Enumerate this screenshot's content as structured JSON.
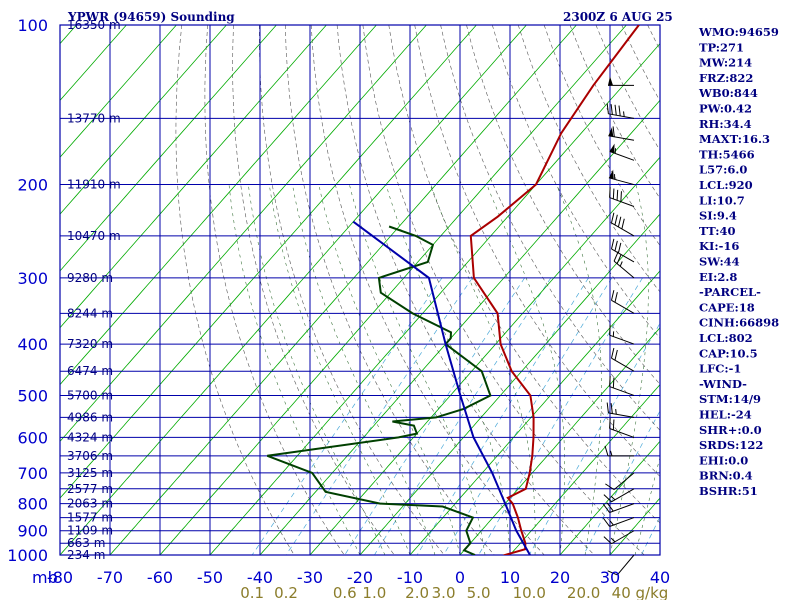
{
  "header": {
    "title": "YPWR (94659) Sounding",
    "time": "2300Z  6 AUG 25"
  },
  "indices": [
    "WMO:94659",
    "TP:271",
    "MW:214",
    "FRZ:822",
    "WB0:844",
    "PW:0.42",
    "RH:34.4",
    "MAXT:16.3",
    "TH:5466",
    "L57:6.0",
    "LCL:920",
    "LI:10.7",
    "SI:9.4",
    "TT:40",
    "KI:-16",
    "SW:44",
    "EI:2.8",
    "-PARCEL-",
    "CAPE:18",
    "CINH:66898",
    "LCL:802",
    "CAP:10.5",
    "LFC:-1",
    "-WIND-",
    "STM:14/9",
    "HEL:-24",
    "SHR+:0.0",
    "SRDS:122",
    "EHI:0.0",
    "BRN:0.4",
    "BSHR:51"
  ],
  "chart_data": {
    "type": "line",
    "subtype": "skew-T log-P sounding",
    "pressure_unit_label": "mb",
    "pressure_ticks": [
      100,
      200,
      300,
      400,
      500,
      600,
      700,
      800,
      900,
      1000
    ],
    "pressure_range": [
      100,
      1000
    ],
    "pressure_axis_scale": "log",
    "temperature_ticks": [
      -80,
      -70,
      -60,
      -50,
      -40,
      -30,
      -20,
      -10,
      0,
      10,
      20,
      30,
      40
    ],
    "temperature_tick_labels": [
      "-80",
      "-70",
      "-60",
      "-50",
      "-40",
      "-30",
      "-20",
      "-10",
      "0",
      "10",
      "20",
      "30",
      "40"
    ],
    "mixing_ratio_labels": [
      "0.1",
      "0.2",
      "0.6",
      "1.0",
      "2.0",
      "3.0",
      "5.0",
      "10.0",
      "20.0",
      "40 g/kg"
    ],
    "height_labels": [
      {
        "p": 100,
        "label": "16350 m"
      },
      {
        "p": 150,
        "label": "13770 m"
      },
      {
        "p": 200,
        "label": "11910 m"
      },
      {
        "p": 250,
        "label": "10470 m"
      },
      {
        "p": 300,
        "label": "9280 m"
      },
      {
        "p": 350,
        "label": "8244 m"
      },
      {
        "p": 400,
        "label": "7320 m"
      },
      {
        "p": 450,
        "label": "6474 m"
      },
      {
        "p": 500,
        "label": "5700 m"
      },
      {
        "p": 550,
        "label": "4986 m"
      },
      {
        "p": 600,
        "label": "4324 m"
      },
      {
        "p": 650,
        "label": "3706 m"
      },
      {
        "p": 700,
        "label": "3125 m"
      },
      {
        "p": 750,
        "label": "2577 m"
      },
      {
        "p": 800,
        "label": "2063 m"
      },
      {
        "p": 850,
        "label": "1577 m"
      },
      {
        "p": 900,
        "label": "1109 m"
      },
      {
        "p": 950,
        "label": "663 m"
      },
      {
        "p": 1000,
        "label": "234 m"
      }
    ],
    "series": [
      {
        "color": "#aa0000",
        "points": [
          [
            100,
            -57.5
          ],
          [
            130,
            -56
          ],
          [
            160,
            -54
          ],
          [
            200,
            -50
          ],
          [
            230,
            -52
          ],
          [
            250,
            -54
          ],
          [
            300,
            -46
          ],
          [
            350,
            -35
          ],
          [
            400,
            -29
          ],
          [
            450,
            -22
          ],
          [
            500,
            -14
          ],
          [
            550,
            -9.5
          ],
          [
            600,
            -6
          ],
          [
            650,
            -3
          ],
          [
            700,
            -0.5
          ],
          [
            750,
            1.5
          ],
          [
            780,
            -0.5
          ],
          [
            800,
            1.5
          ],
          [
            850,
            5
          ],
          [
            900,
            8
          ],
          [
            950,
            11
          ],
          [
            975,
            12
          ],
          [
            1000,
            9
          ],
          [
            1010,
            10
          ]
        ]
      },
      {
        "color": "#004000",
        "points": [
          [
            240,
            -72
          ],
          [
            250,
            -65
          ],
          [
            260,
            -60
          ],
          [
            280,
            -58
          ],
          [
            300,
            -65
          ],
          [
            320,
            -62
          ],
          [
            350,
            -52
          ],
          [
            380,
            -41
          ],
          [
            390,
            -40
          ],
          [
            400,
            -40
          ],
          [
            450,
            -28
          ],
          [
            500,
            -22
          ],
          [
            530,
            -25
          ],
          [
            550,
            -29
          ],
          [
            560,
            -37
          ],
          [
            570,
            -32
          ],
          [
            590,
            -30
          ],
          [
            600,
            -33
          ],
          [
            650,
            -56
          ],
          [
            700,
            -44
          ],
          [
            760,
            -38
          ],
          [
            800,
            -25
          ],
          [
            810,
            -12
          ],
          [
            850,
            -4
          ],
          [
            900,
            -3
          ],
          [
            950,
            0
          ],
          [
            980,
            0
          ],
          [
            1000,
            3
          ]
        ]
      },
      {
        "color": "#0000aa",
        "points": [
          [
            235,
            -80
          ],
          [
            300,
            -55
          ],
          [
            400,
            -40
          ],
          [
            500,
            -28
          ],
          [
            600,
            -18
          ],
          [
            700,
            -8
          ],
          [
            800,
            0
          ],
          [
            900,
            7
          ],
          [
            1000,
            14
          ]
        ]
      }
    ],
    "wind_barbs": [
      {
        "p": 130,
        "dir": 270,
        "speed": 50
      },
      {
        "p": 150,
        "dir": 280,
        "speed": 45
      },
      {
        "p": 165,
        "dir": 280,
        "speed": 60
      },
      {
        "p": 180,
        "dir": 290,
        "speed": 55
      },
      {
        "p": 200,
        "dir": 285,
        "speed": 55
      },
      {
        "p": 220,
        "dir": 290,
        "speed": 40
      },
      {
        "p": 250,
        "dir": 300,
        "speed": 40
      },
      {
        "p": 280,
        "dir": 300,
        "speed": 30
      },
      {
        "p": 300,
        "dir": 310,
        "speed": 25
      },
      {
        "p": 350,
        "dir": 300,
        "speed": 20
      },
      {
        "p": 400,
        "dir": 290,
        "speed": 15
      },
      {
        "p": 450,
        "dir": 300,
        "speed": 20
      },
      {
        "p": 500,
        "dir": 290,
        "speed": 20
      },
      {
        "p": 550,
        "dir": 280,
        "speed": 25
      },
      {
        "p": 600,
        "dir": 290,
        "speed": 20
      },
      {
        "p": 650,
        "dir": 270,
        "speed": 15
      },
      {
        "p": 700,
        "dir": 230,
        "speed": 10
      },
      {
        "p": 750,
        "dir": 240,
        "speed": 15
      },
      {
        "p": 800,
        "dir": 250,
        "speed": 20
      },
      {
        "p": 850,
        "dir": 250,
        "speed": 15
      },
      {
        "p": 900,
        "dir": 240,
        "speed": 15
      },
      {
        "p": 1000,
        "dir": 220,
        "speed": 10
      }
    ]
  }
}
